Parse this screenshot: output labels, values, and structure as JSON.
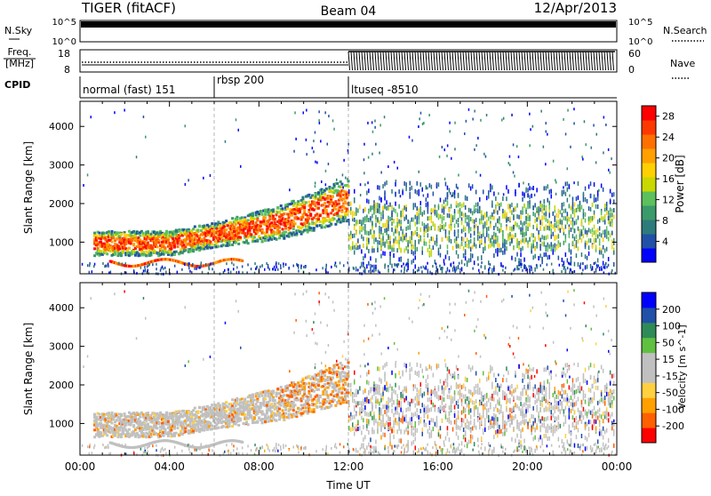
{
  "title": {
    "left": "TIGER (fitACF)",
    "center": "Beam 04",
    "right": "12/Apr/2013"
  },
  "panel_labels": {
    "nsky": "N.Sky",
    "nsearch": "N.Search",
    "freq_line1": "Freq.",
    "freq_line2": "[MHz]",
    "nave": "Nave",
    "cpid": "CPID"
  },
  "top_panel": {
    "left_ticks": [
      "10^5",
      "10^0"
    ],
    "right_ticks": [
      "10^5",
      "10^0"
    ]
  },
  "freq_panel": {
    "left_ticks": [
      "18",
      "8"
    ],
    "right_ticks": [
      "60",
      "0"
    ]
  },
  "cpid_segments": [
    {
      "label": "normal (fast) 151",
      "start_hour": 0
    },
    {
      "label": "rbsp 200",
      "start_hour": 6
    },
    {
      "label": "ltuseq -8510",
      "start_hour": 12
    }
  ],
  "colors": {
    "power": [
      "#0000ff",
      "#2050a8",
      "#2e7b7b",
      "#3a9a6a",
      "#5cc05c",
      "#c8d800",
      "#ffd000",
      "#ffa000",
      "#ff7000",
      "#ff3800",
      "#ff0000"
    ],
    "velocity": [
      "#ff0000",
      "#ff6000",
      "#ffa000",
      "#ffd040",
      "#c0c0c0",
      "#c0c0c0",
      "#60c040",
      "#2e8b57",
      "#2050a8",
      "#0000ff"
    ]
  },
  "chart_data": [
    {
      "type": "heatmap",
      "title": "",
      "xlabel": "",
      "ylabel": "Slant Range [km]",
      "x_unit": "hours UT",
      "xlim": [
        0,
        24
      ],
      "ylim": [
        180,
        4650
      ],
      "yticks": [
        "1000",
        "2000",
        "3000",
        "4000"
      ],
      "colorbar": {
        "label": "Power [dB]",
        "ticks": [
          "4",
          "8",
          "12",
          "16",
          "20",
          "24",
          "28"
        ],
        "range": [
          0,
          30
        ]
      }
    },
    {
      "type": "heatmap",
      "title": "",
      "xlabel": "Time UT",
      "ylabel": "Slant Range [km]",
      "x_unit": "hours UT",
      "xlim": [
        0,
        24
      ],
      "ylim": [
        180,
        4650
      ],
      "xticks": [
        "00:00",
        "04:00",
        "08:00",
        "12:00",
        "16:00",
        "20:00",
        "00:00"
      ],
      "yticks": [
        "1000",
        "2000",
        "3000",
        "4000"
      ],
      "colorbar": {
        "label": "Velocity [m s^-1]",
        "ticks": [
          "-200",
          "-100",
          "-50",
          "-15",
          "15",
          "50",
          "100",
          "200"
        ],
        "range": [
          -250,
          250
        ]
      }
    }
  ]
}
